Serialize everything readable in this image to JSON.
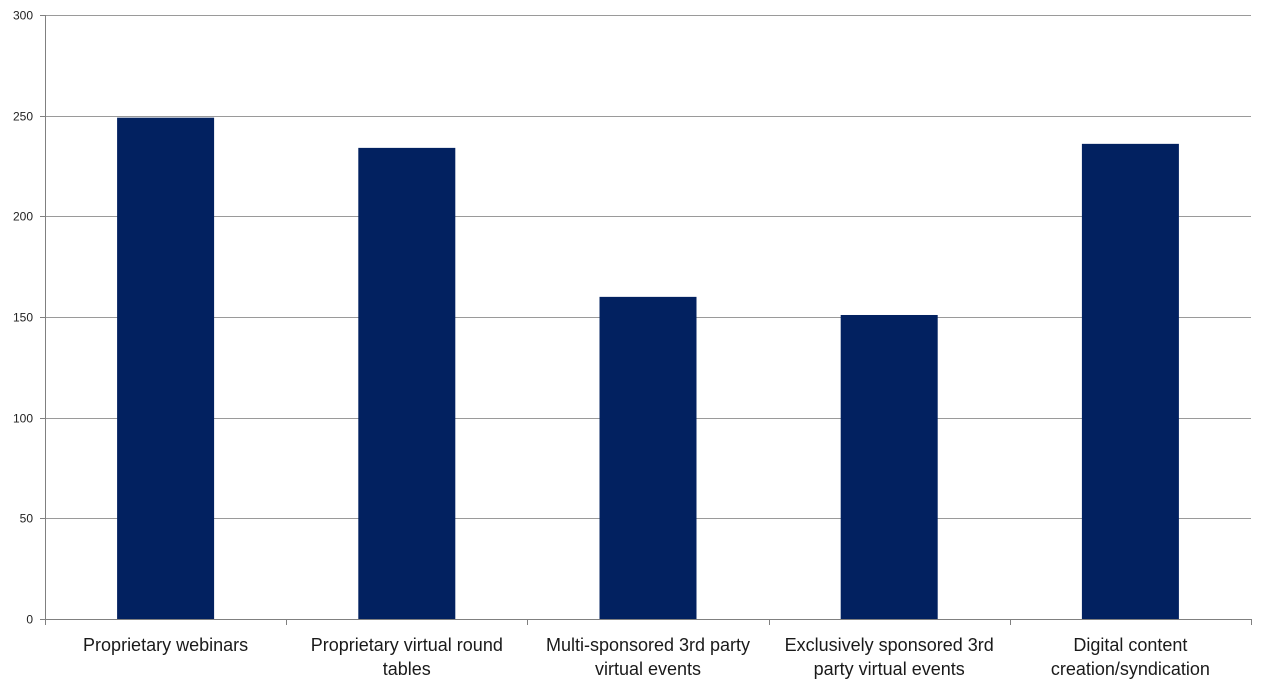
{
  "chart_data": {
    "type": "bar",
    "categories": [
      [
        "Proprietary webinars"
      ],
      [
        "Proprietary virtual round",
        "tables"
      ],
      [
        "Multi-sponsored 3rd party",
        "virtual events"
      ],
      [
        "Exclusively sponsored 3rd",
        "party virtual events"
      ],
      [
        "Digital content",
        "creation/syndication"
      ]
    ],
    "values": [
      249,
      234,
      160,
      151,
      236
    ],
    "ylim": [
      0,
      300
    ],
    "yticks": [
      0,
      50,
      100,
      150,
      200,
      250,
      300
    ],
    "grid": true,
    "legend": "none",
    "bar_color": "#022160",
    "grid_color": "#9a9a9a",
    "axis_color": "#808080"
  }
}
